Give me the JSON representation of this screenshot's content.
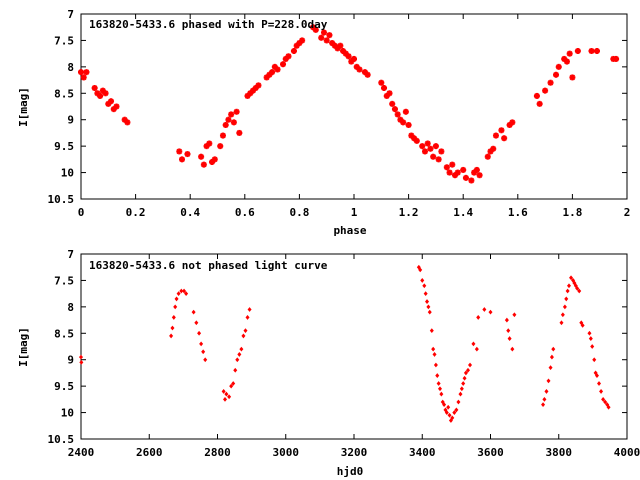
{
  "chart_data": [
    {
      "type": "scatter",
      "title": "163820-5433.6 phased with P=228.0day",
      "xlabel": "phase",
      "ylabel": "I[mag]",
      "xlim": [
        0,
        2
      ],
      "ylim": [
        10.5,
        7
      ],
      "y_inverted": true,
      "grid": false,
      "x_ticks": [
        "0",
        "0.2",
        "0.4",
        "0.6",
        "0.8",
        "1",
        "1.2",
        "1.4",
        "1.6",
        "1.8",
        "2"
      ],
      "y_ticks": [
        "7",
        "7.5",
        "8",
        "8.5",
        "9",
        "9.5",
        "10",
        "10.5"
      ],
      "marker_color": "#ff0000",
      "marker": "star",
      "series": [
        {
          "x": [
            0.0,
            0.01,
            0.02,
            0.05,
            0.06,
            0.07,
            0.08,
            0.09,
            0.1,
            0.11,
            0.12,
            0.13,
            0.16,
            0.17,
            0.36,
            0.37,
            0.39,
            0.44,
            0.45,
            0.46,
            0.47,
            0.48,
            0.49,
            0.51,
            0.52,
            0.53,
            0.54,
            0.55,
            0.56,
            0.57,
            0.58,
            0.61,
            0.62,
            0.63,
            0.64,
            0.65,
            0.68,
            0.69,
            0.7,
            0.71,
            0.72,
            0.74,
            0.75,
            0.76,
            0.78,
            0.79,
            0.8,
            0.81,
            0.85,
            0.86,
            0.88,
            0.89,
            0.9,
            0.91,
            0.92,
            0.93,
            0.94,
            0.95,
            0.96,
            0.97,
            0.98,
            0.99,
            1.0,
            1.01,
            1.02,
            1.04,
            1.05,
            1.1,
            1.11,
            1.12,
            1.13,
            1.14,
            1.15,
            1.16,
            1.17,
            1.18,
            1.19,
            1.2,
            1.21,
            1.22,
            1.23,
            1.25,
            1.26,
            1.27,
            1.28,
            1.29,
            1.3,
            1.31,
            1.32,
            1.34,
            1.35,
            1.36,
            1.37,
            1.38,
            1.4,
            1.41,
            1.43,
            1.44,
            1.45,
            1.46,
            1.49,
            1.5,
            1.51,
            1.52,
            1.54,
            1.55,
            1.57,
            1.58,
            1.67,
            1.68,
            1.7,
            1.72,
            1.74,
            1.75,
            1.77,
            1.78,
            1.79,
            1.8,
            1.82,
            1.87,
            1.89,
            1.95,
            1.96
          ],
          "y": [
            8.1,
            8.2,
            8.1,
            8.4,
            8.5,
            8.55,
            8.45,
            8.5,
            8.7,
            8.65,
            8.8,
            8.75,
            9.0,
            9.05,
            9.6,
            9.75,
            9.65,
            9.7,
            9.85,
            9.5,
            9.45,
            9.8,
            9.75,
            9.5,
            9.3,
            9.1,
            9.0,
            8.9,
            9.05,
            8.85,
            9.25,
            8.55,
            8.5,
            8.45,
            8.4,
            8.35,
            8.2,
            8.15,
            8.1,
            8.0,
            8.05,
            7.95,
            7.85,
            7.8,
            7.7,
            7.6,
            7.55,
            7.5,
            7.25,
            7.3,
            7.45,
            7.35,
            7.5,
            7.4,
            7.55,
            7.6,
            7.65,
            7.6,
            7.7,
            7.75,
            7.8,
            7.9,
            7.85,
            8.0,
            8.05,
            8.1,
            8.15,
            8.3,
            8.4,
            8.55,
            8.5,
            8.7,
            8.8,
            8.9,
            9.0,
            9.05,
            8.85,
            9.1,
            9.3,
            9.35,
            9.4,
            9.5,
            9.6,
            9.45,
            9.55,
            9.7,
            9.5,
            9.75,
            9.6,
            9.9,
            10.0,
            9.85,
            10.05,
            10.0,
            9.95,
            10.1,
            10.15,
            10.0,
            9.95,
            10.05,
            9.7,
            9.6,
            9.55,
            9.3,
            9.2,
            9.35,
            9.1,
            9.05,
            8.55,
            8.7,
            8.45,
            8.3,
            8.15,
            8.0,
            7.85,
            7.9,
            7.75,
            8.2,
            7.7,
            7.7,
            7.7,
            7.85,
            7.85
          ]
        }
      ]
    },
    {
      "type": "scatter",
      "title": "163820-5433.6 not phased light curve",
      "xlabel": "hjd0",
      "ylabel": "I[mag]",
      "xlim": [
        2400,
        4000
      ],
      "ylim": [
        10.5,
        7
      ],
      "y_inverted": true,
      "grid": false,
      "x_ticks": [
        "2400",
        "2600",
        "2800",
        "3000",
        "3200",
        "3400",
        "3600",
        "3800",
        "4000"
      ],
      "y_ticks": [
        "7",
        "7.5",
        "8",
        "8.5",
        "9",
        "9.5",
        "10",
        "10.5"
      ],
      "marker_color": "#ff0000",
      "marker": "diamond",
      "series": [
        {
          "x": [
            2400,
            2401,
            2664,
            2668,
            2672,
            2676,
            2680,
            2686,
            2694,
            2702,
            2708,
            2730,
            2738,
            2746,
            2752,
            2758,
            2764,
            2818,
            2822,
            2826,
            2834,
            2840,
            2846,
            2852,
            2858,
            2864,
            2870,
            2876,
            2882,
            2888,
            2894,
            3390,
            3394,
            3400,
            3406,
            3410,
            3414,
            3418,
            3422,
            3428,
            3432,
            3436,
            3440,
            3444,
            3448,
            3452,
            3456,
            3460,
            3464,
            3468,
            3472,
            3476,
            3480,
            3484,
            3488,
            3494,
            3500,
            3506,
            3512,
            3516,
            3520,
            3524,
            3528,
            3534,
            3540,
            3550,
            3560,
            3564,
            3582,
            3600,
            3648,
            3652,
            3656,
            3664,
            3670,
            3754,
            3758,
            3764,
            3770,
            3776,
            3780,
            3784,
            3808,
            3812,
            3818,
            3822,
            3826,
            3830,
            3836,
            3842,
            3846,
            3850,
            3854,
            3860,
            3866,
            3870,
            3890,
            3894,
            3898,
            3904,
            3908,
            3912,
            3918,
            3924,
            3930,
            3936,
            3942,
            3946
          ],
          "y": [
            8.95,
            9.05,
            8.55,
            8.4,
            8.2,
            8.0,
            7.85,
            7.75,
            7.7,
            7.7,
            7.75,
            8.1,
            8.3,
            8.5,
            8.7,
            8.85,
            9.0,
            9.6,
            9.75,
            9.65,
            9.7,
            9.5,
            9.45,
            9.2,
            9.0,
            8.9,
            8.8,
            8.55,
            8.45,
            8.2,
            8.05,
            7.25,
            7.3,
            7.5,
            7.6,
            7.75,
            7.9,
            8.0,
            8.1,
            8.45,
            8.8,
            8.9,
            9.1,
            9.3,
            9.45,
            9.55,
            9.65,
            9.8,
            9.85,
            9.95,
            10.0,
            9.9,
            10.05,
            10.15,
            10.1,
            10.0,
            9.95,
            9.8,
            9.65,
            9.55,
            9.45,
            9.35,
            9.25,
            9.2,
            9.1,
            8.7,
            8.8,
            8.2,
            8.05,
            8.1,
            8.25,
            8.45,
            8.6,
            8.8,
            8.15,
            9.85,
            9.75,
            9.6,
            9.4,
            9.15,
            8.95,
            8.8,
            8.3,
            8.15,
            8.0,
            7.85,
            7.7,
            7.6,
            7.45,
            7.5,
            7.55,
            7.6,
            7.65,
            7.7,
            8.3,
            8.35,
            8.5,
            8.6,
            8.75,
            9.0,
            9.25,
            9.3,
            9.45,
            9.6,
            9.75,
            9.8,
            9.85,
            9.9
          ]
        }
      ]
    }
  ]
}
